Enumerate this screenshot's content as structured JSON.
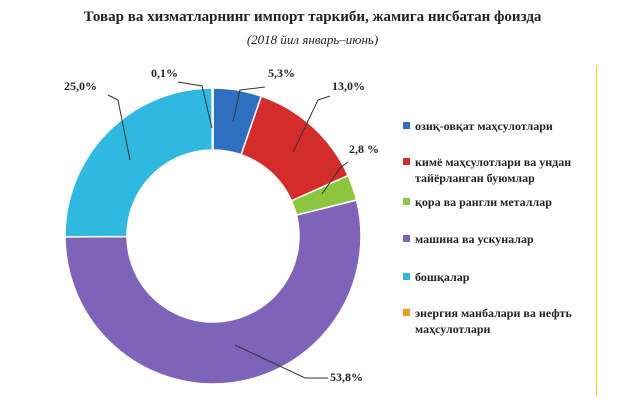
{
  "chart_data": {
    "type": "pie",
    "title": "Товар ва хизматларнинг импорт таркиби, жамига нисбатан фоизда",
    "subtitle": "(2018 йил январь–июнь)",
    "donut": true,
    "legend_position": "right",
    "series": [
      {
        "name": "озиқ-овқат маҳсулотлари",
        "value": 5.3,
        "label": "5,3%",
        "color": "#2e6fbf"
      },
      {
        "name": "кимё маҳсулотлари ва ундан тайёрланган буюмлар",
        "value": 13.0,
        "label": "13,0%",
        "color": "#d42b2b"
      },
      {
        "name": "қора ва рангли металлар",
        "value": 2.8,
        "label": "2,8 %",
        "color": "#8cc63f"
      },
      {
        "name": "машина ва ускуналар",
        "value": 53.8,
        "label": "53,8%",
        "color": "#7f63b8"
      },
      {
        "name": "бошқалар",
        "value": 25.0,
        "label": "25,0%",
        "color": "#2fb8e0"
      },
      {
        "name": "энергия манбалари ва нефть маҳсулотлари",
        "value": 0.1,
        "label": "0,1%",
        "color": "#f39a1c"
      }
    ]
  },
  "legend": {
    "items": [
      {
        "line1": "озиқ-овқат маҳсулотлари",
        "line2": ""
      },
      {
        "line1": "кимё маҳсулотлари ва ундан",
        "line2": "тайёрланган буюмлар"
      },
      {
        "line1": "қора ва рангли металлар",
        "line2": ""
      },
      {
        "line1": "машина ва ускуналар",
        "line2": ""
      },
      {
        "line1": "бошқалар",
        "line2": ""
      },
      {
        "line1": "энергия манбалари ва нефть",
        "line2": "маҳсулотлари"
      }
    ]
  }
}
